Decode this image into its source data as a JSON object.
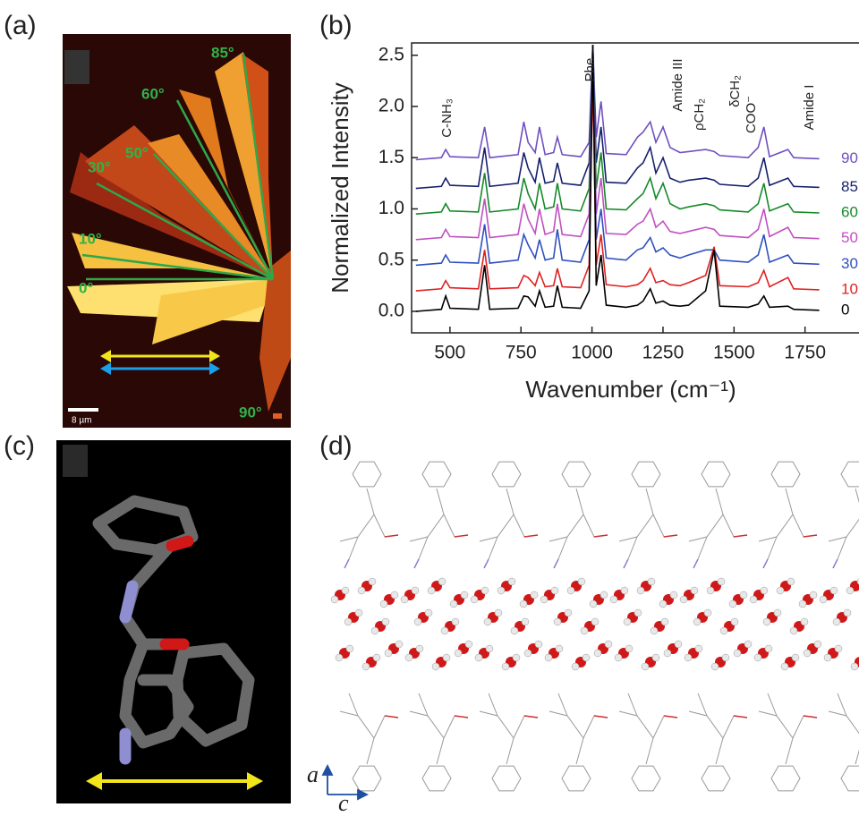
{
  "panel_labels": [
    "(a)",
    "(b)",
    "(c)",
    "(d)"
  ],
  "panel_a": {
    "angles": [
      "85°",
      "60°",
      "50°",
      "30°",
      "10°",
      "0°",
      "90°"
    ],
    "scale_bar": "8 µm"
  },
  "chart_data": {
    "type": "line",
    "x_label": "Wavenumber (cm⁻¹)",
    "y_label": "Normalized Intensity",
    "annotations": [
      "C-NH₃",
      "Phe",
      "Amide III",
      "ρCH₂",
      "δCH₂",
      "COO⁻",
      "Amide I"
    ],
    "x": [
      380,
      470,
      485,
      500,
      600,
      622,
      640,
      740,
      760,
      775,
      800,
      815,
      835,
      865,
      878,
      895,
      960,
      990,
      1003,
      1015,
      1032,
      1050,
      1120,
      1160,
      1180,
      1205,
      1225,
      1250,
      1275,
      1310,
      1340,
      1400,
      1430,
      1450,
      1550,
      1585,
      1605,
      1625,
      1690,
      1710,
      1800
    ],
    "series": [
      {
        "name": "90",
        "color": "#7050c0",
        "values": [
          1.48,
          1.5,
          1.58,
          1.51,
          1.5,
          1.8,
          1.5,
          1.53,
          1.85,
          1.65,
          1.55,
          1.8,
          1.53,
          1.55,
          1.7,
          1.53,
          1.51,
          1.65,
          2.6,
          1.7,
          2.05,
          1.54,
          1.53,
          1.7,
          1.75,
          1.85,
          1.65,
          1.8,
          1.6,
          1.55,
          1.56,
          1.58,
          1.56,
          1.52,
          1.5,
          1.6,
          1.8,
          1.51,
          1.58,
          1.5,
          1.49
        ]
      },
      {
        "name": "85",
        "color": "#15206e",
        "values": [
          1.2,
          1.22,
          1.3,
          1.23,
          1.22,
          1.6,
          1.22,
          1.25,
          1.55,
          1.4,
          1.26,
          1.5,
          1.25,
          1.27,
          1.45,
          1.25,
          1.23,
          1.45,
          2.6,
          1.45,
          1.8,
          1.26,
          1.25,
          1.4,
          1.45,
          1.6,
          1.35,
          1.5,
          1.3,
          1.26,
          1.28,
          1.3,
          1.28,
          1.24,
          1.22,
          1.3,
          1.5,
          1.23,
          1.3,
          1.22,
          1.21
        ]
      },
      {
        "name": "60",
        "color": "#168a2a",
        "values": [
          0.95,
          0.97,
          1.05,
          0.98,
          0.97,
          1.35,
          0.97,
          1.0,
          1.3,
          1.15,
          1.0,
          1.25,
          1.0,
          1.02,
          1.25,
          1.0,
          0.98,
          1.2,
          2.6,
          1.2,
          1.55,
          1.0,
          0.99,
          1.1,
          1.15,
          1.3,
          1.1,
          1.25,
          1.05,
          1.0,
          1.02,
          1.05,
          1.03,
          0.99,
          0.97,
          1.05,
          1.25,
          0.98,
          1.05,
          0.97,
          0.96
        ]
      },
      {
        "name": "50",
        "color": "#c050c0",
        "values": [
          0.7,
          0.72,
          0.8,
          0.73,
          0.72,
          1.1,
          0.72,
          0.75,
          1.05,
          0.9,
          0.76,
          1.0,
          0.75,
          0.78,
          1.05,
          0.75,
          0.73,
          0.95,
          2.6,
          0.95,
          1.3,
          0.76,
          0.75,
          0.85,
          0.88,
          1.0,
          0.82,
          0.88,
          0.78,
          0.76,
          0.78,
          0.82,
          0.8,
          0.74,
          0.72,
          0.8,
          1.0,
          0.73,
          0.82,
          0.72,
          0.71
        ]
      },
      {
        "name": "30",
        "color": "#3050c0",
        "values": [
          0.45,
          0.47,
          0.55,
          0.48,
          0.47,
          0.85,
          0.47,
          0.5,
          0.75,
          0.65,
          0.52,
          0.7,
          0.5,
          0.52,
          0.8,
          0.5,
          0.48,
          0.7,
          2.6,
          0.7,
          1.0,
          0.52,
          0.5,
          0.6,
          0.62,
          0.72,
          0.58,
          0.62,
          0.55,
          0.52,
          0.55,
          0.6,
          0.6,
          0.5,
          0.48,
          0.55,
          0.75,
          0.48,
          0.55,
          0.47,
          0.46
        ]
      },
      {
        "name": "10",
        "color": "#e02020",
        "values": [
          0.2,
          0.22,
          0.3,
          0.23,
          0.22,
          0.6,
          0.22,
          0.23,
          0.35,
          0.33,
          0.25,
          0.38,
          0.24,
          0.25,
          0.42,
          0.24,
          0.23,
          0.45,
          2.3,
          0.45,
          0.75,
          0.26,
          0.24,
          0.26,
          0.3,
          0.42,
          0.28,
          0.3,
          0.26,
          0.25,
          0.28,
          0.35,
          0.63,
          0.25,
          0.24,
          0.28,
          0.4,
          0.24,
          0.33,
          0.22,
          0.21
        ]
      },
      {
        "name": "0",
        "color": "#000000",
        "values": [
          0,
          0.02,
          0.15,
          0.03,
          0.02,
          0.45,
          0.02,
          0.03,
          0.15,
          0.14,
          0.05,
          0.2,
          0.04,
          0.05,
          0.25,
          0.04,
          0.03,
          0.2,
          2.6,
          0.25,
          0.55,
          0.06,
          0.04,
          0.06,
          0.1,
          0.22,
          0.08,
          0.1,
          0.06,
          0.05,
          0.06,
          0.2,
          0.6,
          0.05,
          0.04,
          0.07,
          0.15,
          0.04,
          0.05,
          0.02,
          0.01
        ]
      }
    ],
    "xlim": [
      365,
      1940
    ],
    "ylim": [
      -0.21,
      2.62
    ],
    "xticks": [
      500,
      750,
      1000,
      1250,
      1500,
      1750
    ],
    "yticks": [
      {
        "value": 0,
        "label": "0.0"
      },
      {
        "value": 0.5,
        "label": "0.5"
      },
      {
        "value": 1,
        "label": "1.0"
      },
      {
        "value": 1.5,
        "label": "1.5"
      },
      {
        "value": 2,
        "label": "2.0"
      },
      {
        "value": 2.5,
        "label": "2.5"
      }
    ]
  },
  "panel_d": {
    "axis_labels": [
      "a",
      "c"
    ]
  }
}
